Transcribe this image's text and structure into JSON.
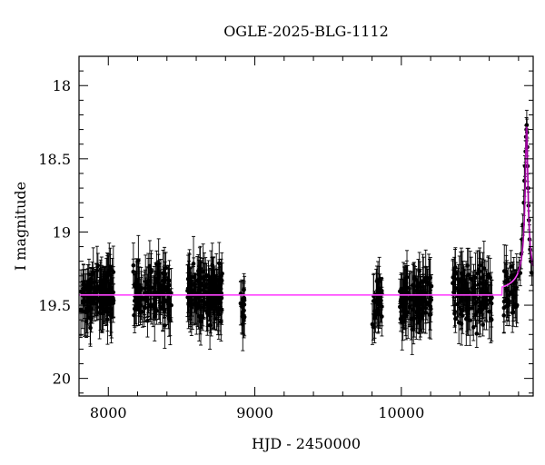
{
  "chart_data": {
    "type": "scatter",
    "title": "OGLE-2025-BLG-1112",
    "xlabel": "HJD - 2450000",
    "ylabel": "I magnitude",
    "xlim": [
      7800,
      10900
    ],
    "ylim": [
      20.12,
      17.8
    ],
    "y_inverted": true,
    "x_ticks": [
      8000,
      9000,
      10000
    ],
    "x_tick_labels": [
      "8000",
      "9000",
      "10000"
    ],
    "y_ticks": [
      18,
      18.5,
      19,
      19.5,
      20
    ],
    "y_tick_labels": [
      "18",
      "18.5",
      "19",
      "19.5",
      "20"
    ],
    "grid": false,
    "legend": "none",
    "colors": {
      "data": "#000000",
      "model": "#ff44ff",
      "model_peak": "#990099"
    },
    "baseline_magnitude": 19.43,
    "peak": {
      "t0": 10855,
      "magnitude": 18.28
    },
    "seasons": [
      {
        "start": 7810,
        "end": 8040,
        "mean_mag": 19.43,
        "n": 130
      },
      {
        "start": 8170,
        "end": 8430,
        "mean_mag": 19.42,
        "n": 130
      },
      {
        "start": 8540,
        "end": 8780,
        "mean_mag": 19.42,
        "n": 160
      },
      {
        "start": 8900,
        "end": 8930,
        "mean_mag": 19.5,
        "n": 14
      },
      {
        "start": 9800,
        "end": 9870,
        "mean_mag": 19.45,
        "n": 30
      },
      {
        "start": 9990,
        "end": 10210,
        "mean_mag": 19.47,
        "n": 110
      },
      {
        "start": 10350,
        "end": 10620,
        "mean_mag": 19.43,
        "n": 120
      },
      {
        "start": 10700,
        "end": 10790,
        "mean_mag": 19.42,
        "n": 40
      }
    ],
    "event_points": [
      {
        "x": 10795,
        "y": 19.3
      },
      {
        "x": 10805,
        "y": 19.25
      },
      {
        "x": 10812,
        "y": 19.28
      },
      {
        "x": 10818,
        "y": 19.15
      },
      {
        "x": 10824,
        "y": 19.05
      },
      {
        "x": 10830,
        "y": 18.95
      },
      {
        "x": 10836,
        "y": 18.8
      },
      {
        "x": 10840,
        "y": 18.65
      },
      {
        "x": 10844,
        "y": 18.55
      },
      {
        "x": 10848,
        "y": 18.45
      },
      {
        "x": 10851,
        "y": 18.35
      },
      {
        "x": 10854,
        "y": 18.3
      },
      {
        "x": 10856,
        "y": 18.27
      },
      {
        "x": 10858,
        "y": 18.32
      },
      {
        "x": 10860,
        "y": 18.42
      },
      {
        "x": 10862,
        "y": 18.55
      },
      {
        "x": 10865,
        "y": 18.7
      },
      {
        "x": 10868,
        "y": 18.82
      },
      {
        "x": 10871,
        "y": 18.92
      },
      {
        "x": 10875,
        "y": 19.05
      },
      {
        "x": 10879,
        "y": 19.12
      },
      {
        "x": 10884,
        "y": 19.2
      },
      {
        "x": 10890,
        "y": 19.28
      }
    ]
  }
}
